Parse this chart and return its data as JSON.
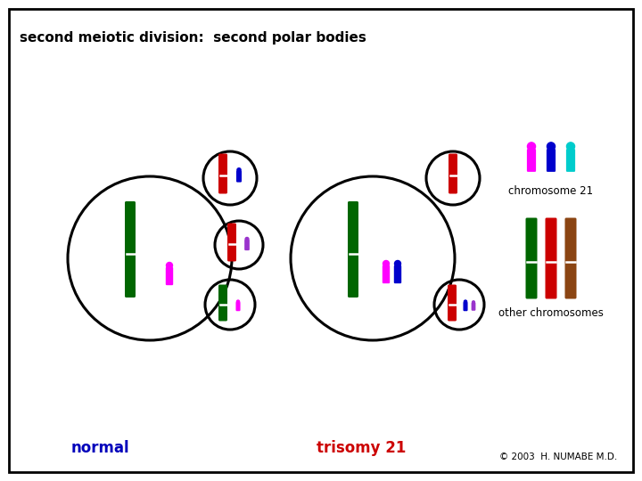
{
  "title": "second meiotic division:  second polar bodies",
  "bg_color": "#ffffff",
  "border_color": "#000000",
  "text_normal": "normal",
  "text_trisomy": "trisomy 21",
  "text_chr21": "chromosome 21",
  "text_other": "other chromosomes",
  "text_copyright": "© 2003  H. NUMABE M.D.",
  "title_color": "#000000",
  "normal_color": "#0000bb",
  "trisomy_color": "#cc0000",
  "colors": {
    "green": "#006600",
    "red": "#cc0000",
    "blue": "#0000cc",
    "magenta": "#ff00ff",
    "purple": "#9933cc",
    "cyan": "#00cccc",
    "brown": "#8B4513"
  }
}
